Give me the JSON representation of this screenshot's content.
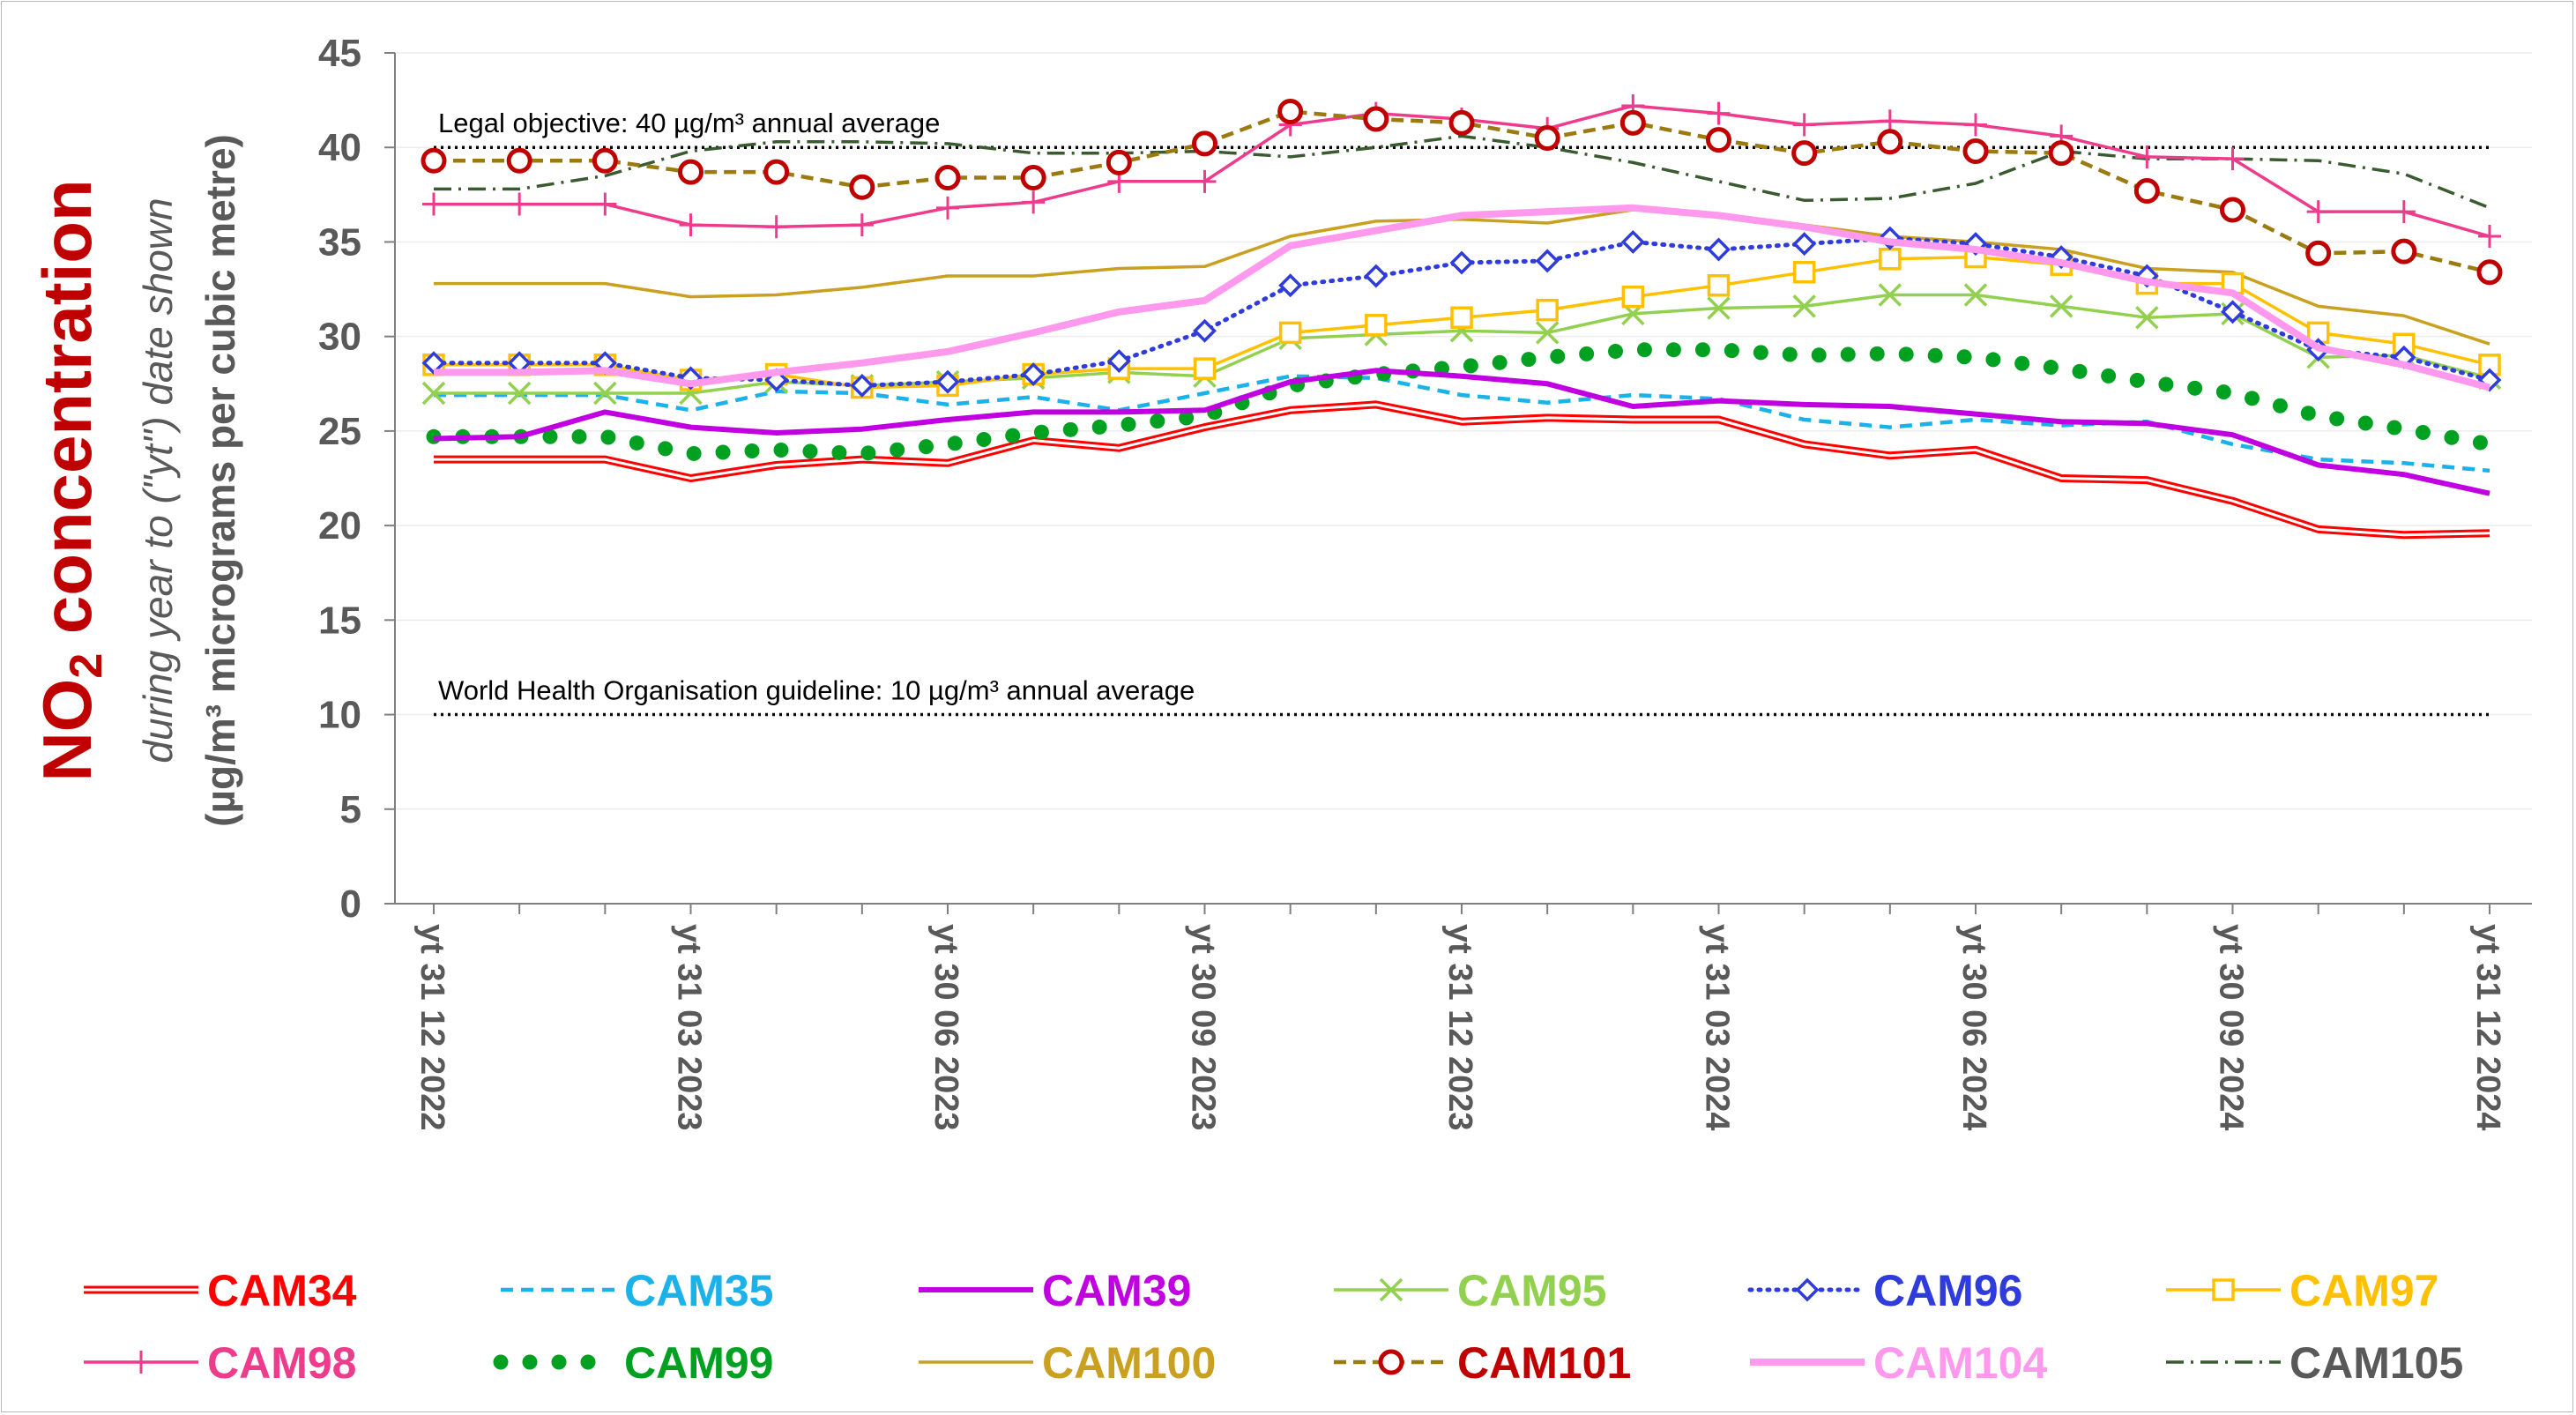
{
  "chart_data": {
    "type": "line",
    "title": "NO2 concentration",
    "ylabel_title": "NO",
    "ylabel_subscript": "2",
    "ylabel_title_rest": " concentration",
    "ylabel_line2": "during year to (\"yt\") date shown",
    "ylabel_line3": "(µg/m³ micrograms per cubic metre)",
    "ylim": [
      0,
      45
    ],
    "yticks": [
      0,
      5,
      10,
      15,
      20,
      25,
      30,
      35,
      40,
      45
    ],
    "x_count": 25,
    "xtick_labels": [
      {
        "index": 0,
        "label": "yt 31 12 2022"
      },
      {
        "index": 3,
        "label": "yt 31 03 2023"
      },
      {
        "index": 6,
        "label": "yt 30 06 2023"
      },
      {
        "index": 9,
        "label": "yt 30 09 2023"
      },
      {
        "index": 12,
        "label": "yt 31 12 2023"
      },
      {
        "index": 15,
        "label": "yt 31 03 2024"
      },
      {
        "index": 18,
        "label": "yt 30 06 2024"
      },
      {
        "index": 21,
        "label": "yt 30 09 2024"
      },
      {
        "index": 24,
        "label": "yt 31 12 2024"
      }
    ],
    "reference_lines": [
      {
        "value": 40,
        "label": "Legal objective:  40 µg/m³ annual average"
      },
      {
        "value": 10,
        "label": "World Health Organisation guideline:  10 µg/m³ annual average"
      }
    ],
    "series": [
      {
        "name": "CAM34",
        "color": "#ff0000",
        "style": "double",
        "marker": "none",
        "values": [
          23.5,
          23.5,
          23.5,
          22.5,
          23.2,
          23.5,
          23.3,
          24.5,
          24.1,
          25.2,
          26.1,
          26.4,
          25.5,
          25.7,
          25.6,
          25.6,
          24.3,
          23.7,
          24.0,
          22.5,
          22.4,
          21.3,
          19.8,
          19.5,
          19.6
        ]
      },
      {
        "name": "CAM35",
        "color": "#1ab2e8",
        "style": "dashed",
        "marker": "none",
        "values": [
          26.9,
          26.9,
          26.9,
          26.1,
          27.1,
          27.0,
          26.4,
          26.8,
          26.1,
          27.0,
          27.9,
          27.8,
          26.9,
          26.5,
          26.9,
          26.7,
          25.6,
          25.2,
          25.6,
          25.3,
          25.5,
          24.3,
          23.5,
          23.3,
          22.9
        ]
      },
      {
        "name": "CAM39",
        "color": "#c000e0",
        "style": "solid-thick",
        "marker": "none",
        "values": [
          24.6,
          24.7,
          26.0,
          25.2,
          24.9,
          25.1,
          25.6,
          26.0,
          26.0,
          26.1,
          27.6,
          28.2,
          27.9,
          27.5,
          26.3,
          26.6,
          26.4,
          26.3,
          25.9,
          25.5,
          25.4,
          24.8,
          23.2,
          22.7,
          21.7
        ]
      },
      {
        "name": "CAM95",
        "color": "#92d050",
        "style": "solid",
        "marker": "x",
        "values": [
          27.0,
          27.0,
          27.0,
          27.0,
          27.6,
          27.4,
          27.6,
          27.8,
          28.1,
          27.9,
          29.9,
          30.1,
          30.3,
          30.2,
          31.2,
          31.5,
          31.6,
          32.2,
          32.2,
          31.6,
          31.0,
          31.2,
          28.9,
          29.0,
          27.8
        ]
      },
      {
        "name": "CAM96",
        "color": "#2f3cdb",
        "style": "dotted",
        "marker": "diamond",
        "values": [
          28.6,
          28.6,
          28.6,
          27.8,
          27.7,
          27.4,
          27.6,
          28.0,
          28.7,
          30.3,
          32.7,
          33.2,
          33.9,
          34.0,
          35.0,
          34.6,
          34.9,
          35.2,
          34.9,
          34.2,
          33.2,
          31.3,
          29.3,
          28.9,
          27.7
        ]
      },
      {
        "name": "CAM97",
        "color": "#ffc000",
        "style": "solid",
        "marker": "square",
        "values": [
          28.5,
          28.5,
          28.5,
          27.7,
          28.0,
          27.3,
          27.4,
          28.0,
          28.3,
          28.3,
          30.2,
          30.6,
          31.0,
          31.4,
          32.1,
          32.7,
          33.4,
          34.1,
          34.2,
          33.8,
          32.8,
          32.8,
          30.2,
          29.6,
          28.5
        ]
      },
      {
        "name": "CAM98",
        "color": "#ee3c8c",
        "style": "solid",
        "marker": "plus",
        "values": [
          37.0,
          37.0,
          37.0,
          35.9,
          35.8,
          35.9,
          36.8,
          37.1,
          38.2,
          38.2,
          41.2,
          41.8,
          41.5,
          41.0,
          42.2,
          41.8,
          41.2,
          41.4,
          41.2,
          40.6,
          39.5,
          39.4,
          36.6,
          36.6,
          35.3
        ]
      },
      {
        "name": "CAM99",
        "color": "#00a020",
        "style": "bigdots",
        "marker": "none",
        "values": [
          24.7,
          24.7,
          24.7,
          23.8,
          24.0,
          23.8,
          24.3,
          24.9,
          25.3,
          25.8,
          27.4,
          28.0,
          28.4,
          28.9,
          29.3,
          29.3,
          29.0,
          29.1,
          28.9,
          28.3,
          27.6,
          27.0,
          25.8,
          25.1,
          24.3
        ]
      },
      {
        "name": "CAM100",
        "color": "#c9a020",
        "style": "solid",
        "marker": "none",
        "values": [
          32.8,
          32.8,
          32.8,
          32.1,
          32.2,
          32.6,
          33.2,
          33.2,
          33.6,
          33.7,
          35.3,
          36.1,
          36.2,
          36.0,
          36.7,
          36.5,
          35.9,
          35.3,
          35.0,
          34.6,
          33.6,
          33.4,
          31.6,
          31.1,
          29.6
        ]
      },
      {
        "name": "CAM101",
        "color": "#c00000",
        "style": "dashed-olive",
        "marker": "circle",
        "values": [
          39.3,
          39.3,
          39.3,
          38.7,
          38.7,
          37.9,
          38.4,
          38.4,
          39.2,
          40.2,
          41.9,
          41.5,
          41.3,
          40.5,
          41.3,
          40.4,
          39.7,
          40.3,
          39.8,
          39.7,
          37.7,
          36.7,
          34.4,
          34.5,
          33.4
        ]
      },
      {
        "name": "CAM104",
        "color": "#ff99ee",
        "style": "solid-thick",
        "marker": "none",
        "values": [
          28.1,
          28.1,
          28.2,
          27.5,
          28.1,
          28.6,
          29.2,
          30.2,
          31.3,
          31.9,
          34.8,
          35.6,
          36.4,
          36.6,
          36.8,
          36.4,
          35.8,
          35.0,
          34.6,
          33.9,
          32.9,
          32.3,
          29.4,
          28.5,
          27.3
        ]
      },
      {
        "name": "CAM105",
        "color": "#3a5a30",
        "style": "dashdot",
        "marker": "none",
        "values": [
          37.8,
          37.8,
          38.5,
          39.8,
          40.3,
          40.3,
          40.2,
          39.7,
          39.7,
          39.8,
          39.5,
          40.0,
          40.6,
          40.0,
          39.2,
          38.2,
          37.2,
          37.3,
          38.1,
          39.8,
          39.4,
          39.4,
          39.3,
          38.6,
          36.8
        ]
      }
    ],
    "legend": {
      "position": "bottom",
      "columns": 6
    }
  }
}
